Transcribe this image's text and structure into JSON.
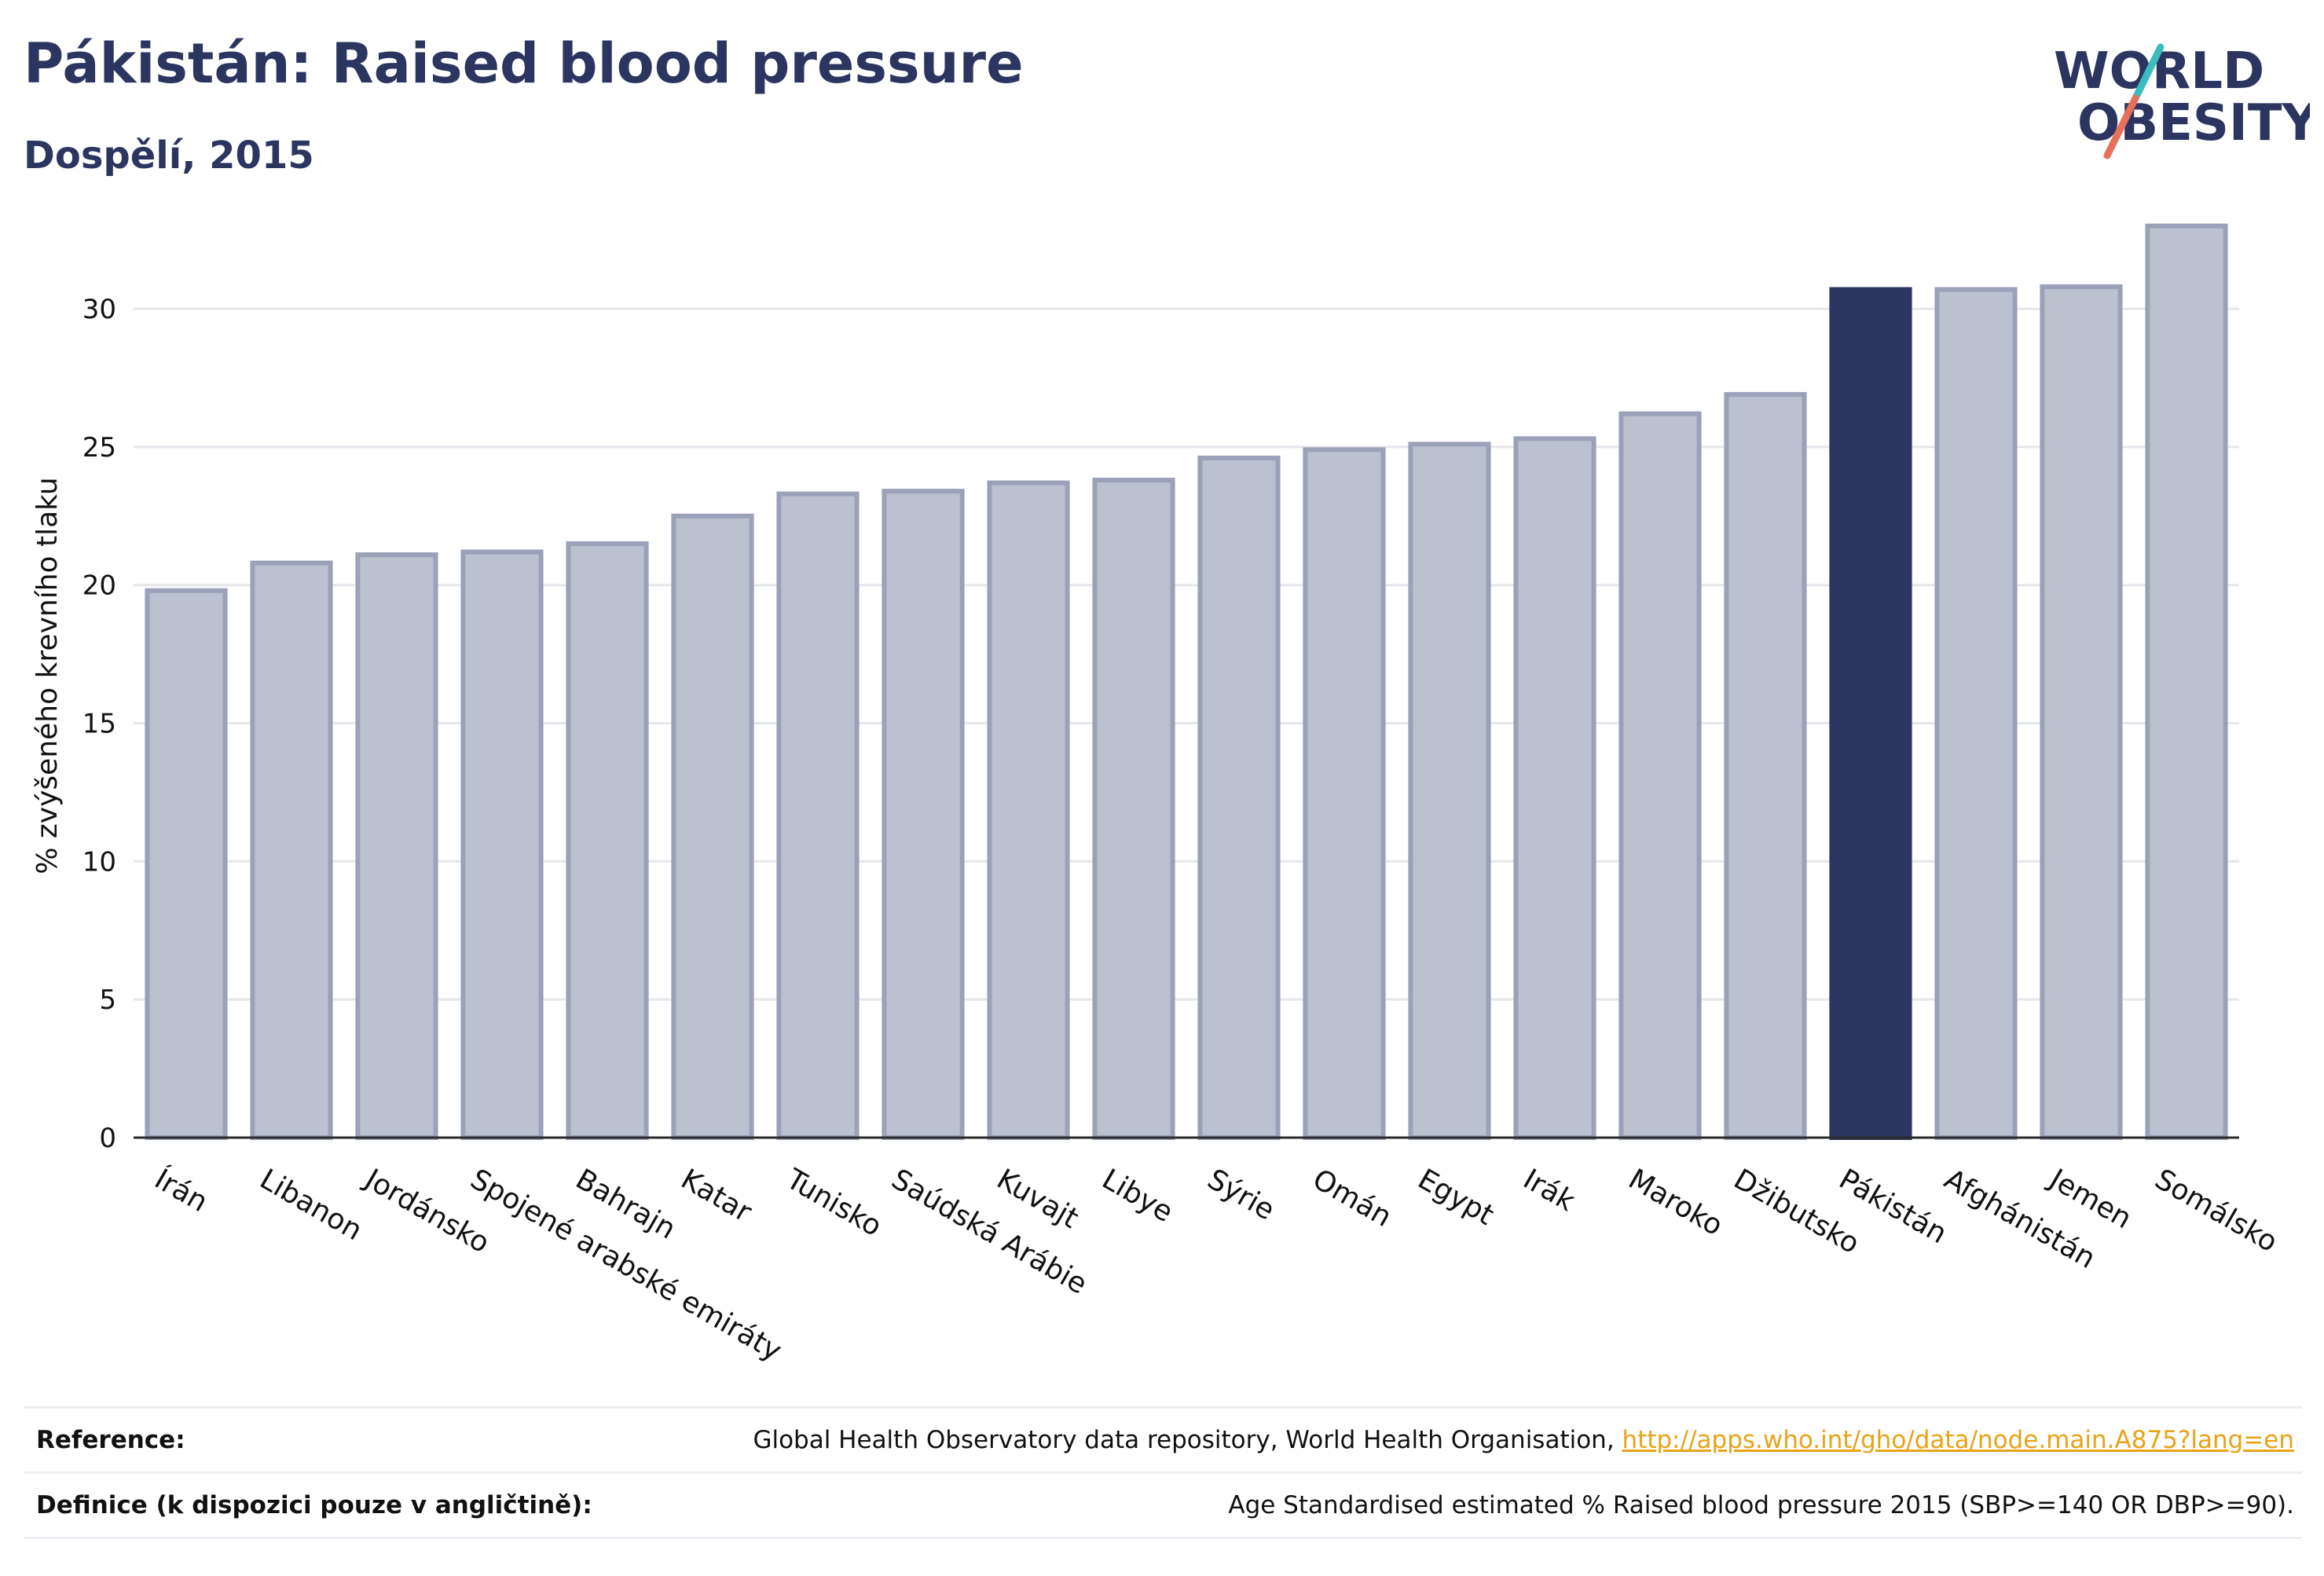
{
  "header": {
    "title": "Pákistán: Raised blood pressure",
    "subtitle": "Dospělí, 2015"
  },
  "logo": {
    "line1": "WORLD",
    "line2": "OBESITY",
    "slash_colors": [
      "#3cbcbf",
      "#e8705a"
    ]
  },
  "colors": {
    "bar": "#bcc1cf",
    "bar_stroke": "#9aa1b8",
    "highlight": "#2b3560",
    "grid": "#e6e7ec",
    "axis": "#2a2a2a"
  },
  "chart_data": {
    "type": "bar",
    "ylabel": "% zvýšeného krevního tlaku",
    "xlabel": "",
    "ylim": [
      0,
      33.5
    ],
    "yticks": [
      0,
      5,
      10,
      15,
      20,
      25,
      30
    ],
    "highlight": "Pákistán",
    "grid": true,
    "categories": [
      "Írán",
      "Libanon",
      "Jordánsko",
      "Spojené arabské emiráty",
      "Bahrajn",
      "Katar",
      "Tunisko",
      "Saúdská Arábie",
      "Kuvajt",
      "Libye",
      "Sýrie",
      "Omán",
      "Egypt",
      "Irák",
      "Maroko",
      "Džibutsko",
      "Pákistán",
      "Afghánistán",
      "Jemen",
      "Somálsko"
    ],
    "values": [
      19.8,
      20.8,
      21.1,
      21.2,
      21.5,
      22.5,
      23.3,
      23.4,
      23.7,
      23.8,
      24.6,
      24.9,
      25.1,
      25.3,
      26.2,
      26.9,
      30.7,
      30.7,
      30.8,
      33.0
    ]
  },
  "footer": {
    "reference_label": "Reference:",
    "reference_text": "Global Health Observatory data repository, World Health Organisation, ",
    "reference_link": "http://apps.who.int/gho/data/node.main.A875?lang=en",
    "definition_label": "Definice (k dispozici pouze v angličtině):",
    "definition_text": "Age Standardised estimated % Raised blood pressure 2015 (SBP>=140 OR DBP>=90)."
  }
}
